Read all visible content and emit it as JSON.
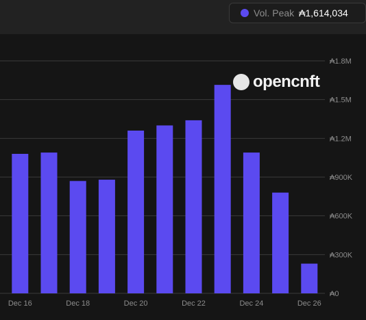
{
  "header": {
    "series_label": "Vol. Peak",
    "series_value": "₳1,614,034",
    "series_color": "#5b4af0"
  },
  "watermark": {
    "text": "opencnft",
    "icon": "circle-logo-icon"
  },
  "chart_data": {
    "type": "bar",
    "categories": [
      "Dec 16",
      "Dec 17",
      "Dec 18",
      "Dec 19",
      "Dec 20",
      "Dec 21",
      "Dec 22",
      "Dec 23",
      "Dec 24",
      "Dec 25",
      "Dec 26"
    ],
    "x_tick_labels": [
      "Dec 16",
      "",
      "Dec 18",
      "",
      "Dec 20",
      "",
      "Dec 22",
      "",
      "Dec 24",
      "",
      "Dec 26"
    ],
    "series": [
      {
        "name": "Vol. Peak",
        "values": [
          1080000,
          1090000,
          870000,
          880000,
          1260000,
          1300000,
          1340000,
          1614034,
          1090000,
          780000,
          230000
        ]
      }
    ],
    "ylim": [
      0,
      1800000
    ],
    "y_ticks": [
      0,
      300000,
      600000,
      900000,
      1200000,
      1500000,
      1800000
    ],
    "y_tick_labels": [
      "₳0",
      "₳300K",
      "₳600K",
      "₳900K",
      "₳1.2M",
      "₳1.5M",
      "₳1.8M"
    ],
    "axis_position": "right",
    "grid": true,
    "bar_color": "#5b4af0",
    "grid_color": "#3a3a3a",
    "tick_label_color": "#8d8d8d"
  }
}
